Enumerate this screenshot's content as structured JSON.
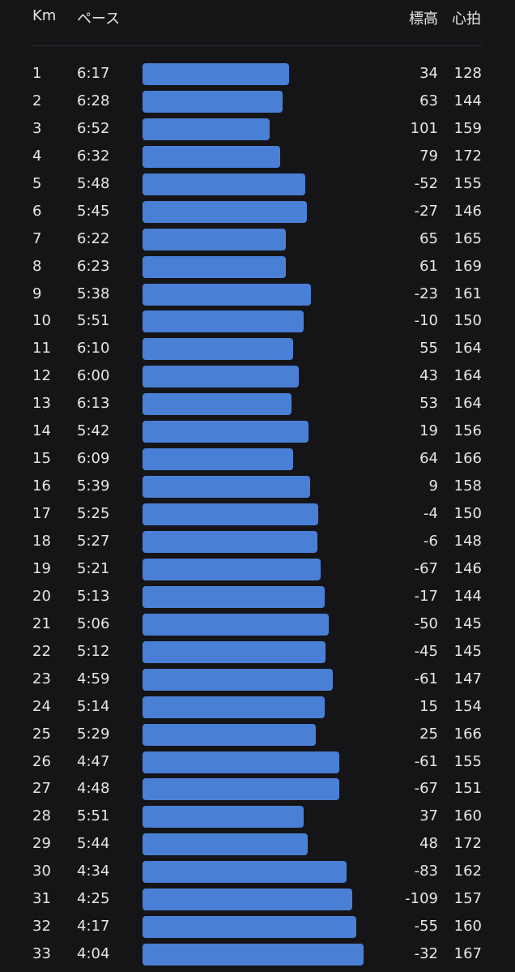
{
  "header": {
    "km": "Km",
    "pace": "ペース",
    "elevation": "標高",
    "heart_rate": "心拍"
  },
  "colors": {
    "background": "#151517",
    "bar": "#4a7fd6",
    "text": "#e6e6e9",
    "divider": "#2e2e33"
  },
  "splits": [
    {
      "km": "1",
      "pace": "6:17",
      "elevation": "34",
      "heart_rate": "128"
    },
    {
      "km": "2",
      "pace": "6:28",
      "elevation": "63",
      "heart_rate": "144"
    },
    {
      "km": "3",
      "pace": "6:52",
      "elevation": "101",
      "heart_rate": "159"
    },
    {
      "km": "4",
      "pace": "6:32",
      "elevation": "79",
      "heart_rate": "172"
    },
    {
      "km": "5",
      "pace": "5:48",
      "elevation": "-52",
      "heart_rate": "155"
    },
    {
      "km": "6",
      "pace": "5:45",
      "elevation": "-27",
      "heart_rate": "146"
    },
    {
      "km": "7",
      "pace": "6:22",
      "elevation": "65",
      "heart_rate": "165"
    },
    {
      "km": "8",
      "pace": "6:23",
      "elevation": "61",
      "heart_rate": "169"
    },
    {
      "km": "9",
      "pace": "5:38",
      "elevation": "-23",
      "heart_rate": "161"
    },
    {
      "km": "10",
      "pace": "5:51",
      "elevation": "-10",
      "heart_rate": "150"
    },
    {
      "km": "11",
      "pace": "6:10",
      "elevation": "55",
      "heart_rate": "164"
    },
    {
      "km": "12",
      "pace": "6:00",
      "elevation": "43",
      "heart_rate": "164"
    },
    {
      "km": "13",
      "pace": "6:13",
      "elevation": "53",
      "heart_rate": "164"
    },
    {
      "km": "14",
      "pace": "5:42",
      "elevation": "19",
      "heart_rate": "156"
    },
    {
      "km": "15",
      "pace": "6:09",
      "elevation": "64",
      "heart_rate": "166"
    },
    {
      "km": "16",
      "pace": "5:39",
      "elevation": "9",
      "heart_rate": "158"
    },
    {
      "km": "17",
      "pace": "5:25",
      "elevation": "-4",
      "heart_rate": "150"
    },
    {
      "km": "18",
      "pace": "5:27",
      "elevation": "-6",
      "heart_rate": "148"
    },
    {
      "km": "19",
      "pace": "5:21",
      "elevation": "-67",
      "heart_rate": "146"
    },
    {
      "km": "20",
      "pace": "5:13",
      "elevation": "-17",
      "heart_rate": "144"
    },
    {
      "km": "21",
      "pace": "5:06",
      "elevation": "-50",
      "heart_rate": "145"
    },
    {
      "km": "22",
      "pace": "5:12",
      "elevation": "-45",
      "heart_rate": "145"
    },
    {
      "km": "23",
      "pace": "4:59",
      "elevation": "-61",
      "heart_rate": "147"
    },
    {
      "km": "24",
      "pace": "5:14",
      "elevation": "15",
      "heart_rate": "154"
    },
    {
      "km": "25",
      "pace": "5:29",
      "elevation": "25",
      "heart_rate": "166"
    },
    {
      "km": "26",
      "pace": "4:47",
      "elevation": "-61",
      "heart_rate": "155"
    },
    {
      "km": "27",
      "pace": "4:48",
      "elevation": "-67",
      "heart_rate": "151"
    },
    {
      "km": "28",
      "pace": "5:51",
      "elevation": "37",
      "heart_rate": "160"
    },
    {
      "km": "29",
      "pace": "5:44",
      "elevation": "48",
      "heart_rate": "172"
    },
    {
      "km": "30",
      "pace": "4:34",
      "elevation": "-83",
      "heart_rate": "162"
    },
    {
      "km": "31",
      "pace": "4:25",
      "elevation": "-109",
      "heart_rate": "157"
    },
    {
      "km": "32",
      "pace": "4:17",
      "elevation": "-55",
      "heart_rate": "160"
    },
    {
      "km": "33",
      "pace": "4:04",
      "elevation": "-32",
      "heart_rate": "167"
    }
  ]
}
